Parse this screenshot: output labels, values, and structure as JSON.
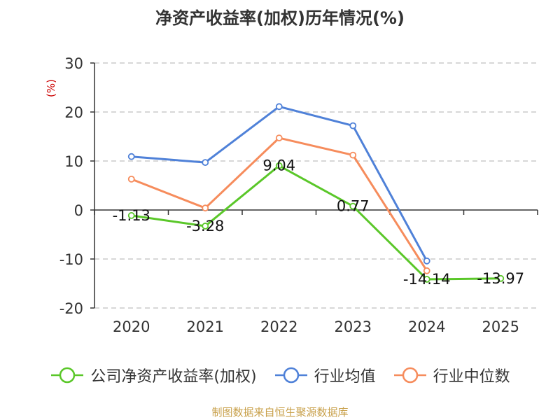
{
  "chart_data": {
    "type": "line",
    "title": "净资产收益率(加权)历年情况(%)",
    "ylabel": "(%)",
    "xlabel": "",
    "categories": [
      "2020",
      "2021",
      "2022",
      "2023",
      "2024",
      "2025"
    ],
    "ylim": [
      -20,
      30
    ],
    "yticks": [
      30,
      20,
      10,
      0,
      -10,
      -20
    ],
    "grid": true,
    "legend_position": "bottom",
    "series": [
      {
        "name": "公司净资产收益率(加权)",
        "color": "#5ac729",
        "values": [
          -1.13,
          -3.28,
          9.04,
          0.77,
          -14.14,
          -13.97
        ],
        "labels": [
          "-1.13",
          "-3.28",
          "9.04",
          "0.77",
          "-14.14",
          "-13.97"
        ]
      },
      {
        "name": "行业均值",
        "color": "#4f81d8",
        "values": [
          10.9,
          9.7,
          21.1,
          17.2,
          -10.4,
          null
        ]
      },
      {
        "name": "行业中位数",
        "color": "#f68c5c",
        "values": [
          6.3,
          0.4,
          14.7,
          11.2,
          -12.4,
          null
        ]
      }
    ]
  },
  "source_text": "制图数据来自恒生聚源数据库"
}
